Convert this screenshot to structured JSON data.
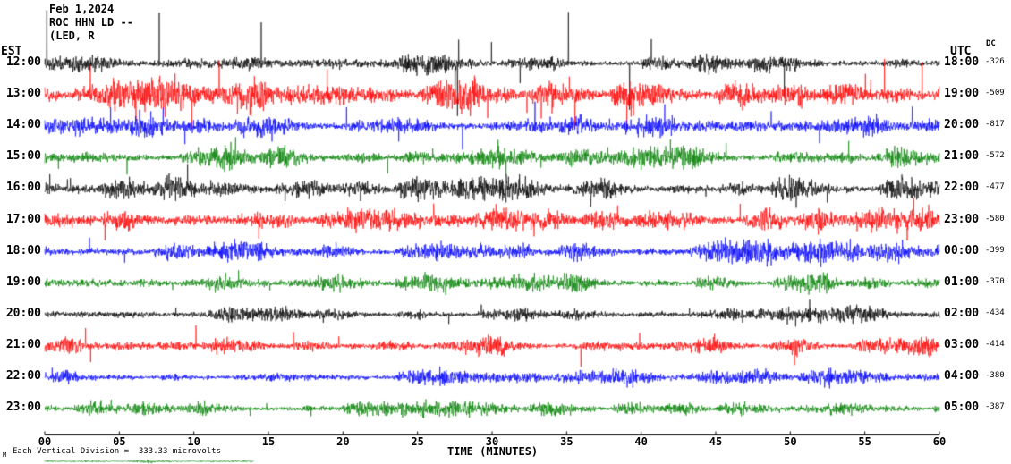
{
  "header": {
    "date": "Feb 1,2024",
    "station": "ROC HHN LD --",
    "station_info": "(LED, R"
  },
  "axes": {
    "left_label": "EST",
    "right_label": "UTC",
    "dc_label": "DC",
    "x_label": "TIME (MINUTES)",
    "x_ticks": [
      "00",
      "05",
      "10",
      "15",
      "20",
      "25",
      "30",
      "35",
      "40",
      "45",
      "50",
      "55",
      "60"
    ]
  },
  "footer": {
    "marker": "M",
    "scale_note": "Each Vertical Division =  333.33 microvolts"
  },
  "chart_data": {
    "type": "line",
    "title": "ROC HHN LD -- helicorder seismogram, Feb 1,2024",
    "xlabel": "TIME (MINUTES)",
    "x_range": [
      0,
      60
    ],
    "x_tick_step_minutes": 5,
    "y_scale_note": "Each Vertical Division = 333.33 microvolts",
    "left_time_zone": "EST",
    "right_time_zone": "UTC",
    "trace_colors_cycle": [
      "#000000",
      "#ff0000",
      "#0000ff",
      "#008000"
    ],
    "rows": [
      {
        "est": "12:00",
        "utc": "18:00",
        "dc": -326,
        "color": "#000000",
        "amp": 8,
        "spike": 58,
        "spike_prob": 0.007,
        "up_bias": 0.8
      },
      {
        "est": "13:00",
        "utc": "19:00",
        "dc": -509,
        "color": "#ff0000",
        "amp": 12,
        "spike": 42,
        "spike_prob": 0.008,
        "up_bias": 0.55
      },
      {
        "est": "14:00",
        "utc": "20:00",
        "dc": -817,
        "color": "#0000ff",
        "amp": 10,
        "spike": 26,
        "spike_prob": 0.005,
        "up_bias": 0.5
      },
      {
        "est": "15:00",
        "utc": "21:00",
        "dc": -572,
        "color": "#008000",
        "amp": 9,
        "spike": 20,
        "spike_prob": 0.004,
        "up_bias": 0.5
      },
      {
        "est": "16:00",
        "utc": "22:00",
        "dc": -477,
        "color": "#000000",
        "amp": 9,
        "spike": 18,
        "spike_prob": 0.004,
        "up_bias": 0.5
      },
      {
        "est": "17:00",
        "utc": "23:00",
        "dc": -580,
        "color": "#ff0000",
        "amp": 9,
        "spike": 24,
        "spike_prob": 0.004,
        "up_bias": 0.5
      },
      {
        "est": "18:00",
        "utc": "00:00",
        "dc": -399,
        "color": "#0000ff",
        "amp": 8,
        "spike": 16,
        "spike_prob": 0.003,
        "up_bias": 0.5
      },
      {
        "est": "19:00",
        "utc": "01:00",
        "dc": -370,
        "color": "#008000",
        "amp": 7,
        "spike": 14,
        "spike_prob": 0.003,
        "up_bias": 0.5
      },
      {
        "est": "20:00",
        "utc": "02:00",
        "dc": -434,
        "color": "#000000",
        "amp": 6,
        "spike": 13,
        "spike_prob": 0.003,
        "up_bias": 0.5
      },
      {
        "est": "21:00",
        "utc": "03:00",
        "dc": -414,
        "color": "#ff0000",
        "amp": 7,
        "spike": 20,
        "spike_prob": 0.004,
        "up_bias": 0.5
      },
      {
        "est": "22:00",
        "utc": "04:00",
        "dc": -380,
        "color": "#0000ff",
        "amp": 6,
        "spike": 10,
        "spike_prob": 0.003,
        "up_bias": 0.5
      },
      {
        "est": "23:00",
        "utc": "05:00",
        "dc": -387,
        "color": "#008000",
        "amp": 6,
        "spike": 10,
        "spike_prob": 0.003,
        "up_bias": 0.5
      }
    ],
    "partial_row": {
      "color": "#008000",
      "amp": 1.5,
      "start_minute": 0,
      "end_minute": 14
    }
  }
}
